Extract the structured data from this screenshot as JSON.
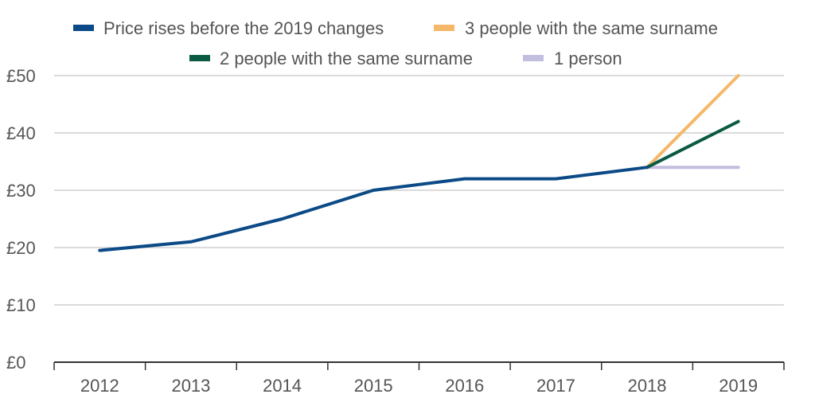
{
  "chart_data": {
    "type": "line",
    "title": "",
    "xlabel": "",
    "ylabel": "",
    "x": [
      "2012",
      "2013",
      "2014",
      "2015",
      "2016",
      "2017",
      "2018",
      "2019"
    ],
    "y_ticks": [
      "£0",
      "£10",
      "£20",
      "£30",
      "£40",
      "£50"
    ],
    "ylim": [
      0,
      50
    ],
    "grid": true,
    "legend_position": "top",
    "series": [
      {
        "name": "Price rises before the 2019 changes",
        "color": "#0b4a86",
        "points": [
          [
            "2012",
            19.5
          ],
          [
            "2013",
            21
          ],
          [
            "2014",
            25
          ],
          [
            "2015",
            30
          ],
          [
            "2016",
            32
          ],
          [
            "2017",
            32
          ],
          [
            "2018",
            34
          ]
        ]
      },
      {
        "name": "3 people with the same surname",
        "color": "#f5b86a",
        "points": [
          [
            "2018",
            34
          ],
          [
            "2019",
            50
          ]
        ]
      },
      {
        "name": "2 people with the same surname",
        "color": "#0b5a44",
        "points": [
          [
            "2018",
            34
          ],
          [
            "2019",
            42
          ]
        ]
      },
      {
        "name": "1 person",
        "color": "#c2bedf",
        "points": [
          [
            "2018",
            34
          ],
          [
            "2019",
            34
          ]
        ]
      }
    ]
  }
}
